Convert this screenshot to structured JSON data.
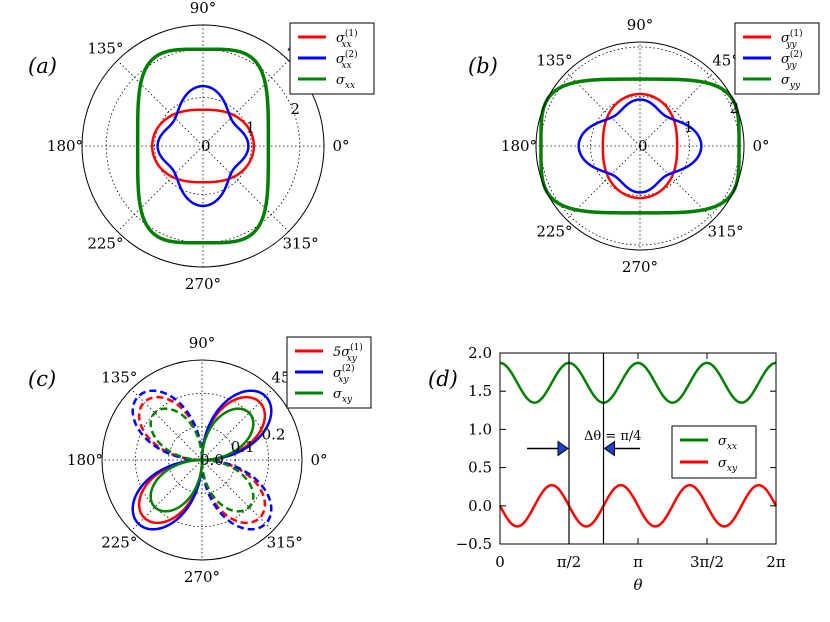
{
  "chart_data": [
    {
      "type": "polar-line",
      "panel_label": "(a)",
      "angle_tick_labels": [
        "0°",
        "45°",
        "90°",
        "135°",
        "180°",
        "225°",
        "270°",
        "315°"
      ],
      "radial_tick_labels": [
        "0",
        "1",
        "2"
      ],
      "rlim": [
        0,
        2.5
      ],
      "series": [
        {
          "name": "σ_xx^(1)",
          "color": "#ff0000",
          "dashed": false,
          "formula": "r = 0.9 + 0.15*cos(2θ)"
        },
        {
          "name": "σ_xx^(2)",
          "color": "#0000ff",
          "dashed": false,
          "formula": "r = 0.9 - 0.15*cos(2θ) + 0.25*cos(4θ) (approx.)"
        },
        {
          "name": "σ_xx",
          "color": "#008000",
          "dashed": false,
          "formula": "superellipse, r(0°) ≈ 1.35, r(90°) ≈ 2.0"
        }
      ],
      "legend": [
        {
          "label": "σ",
          "sub": "xx",
          "sup": "(1)",
          "color": "#ff0000"
        },
        {
          "label": "σ",
          "sub": "xx",
          "sup": "(2)",
          "color": "#0000ff"
        },
        {
          "label": "σ",
          "sub": "xx",
          "sup": "",
          "color": "#008000"
        }
      ],
      "legend_position": "top-right",
      "grid": true
    },
    {
      "type": "polar-line",
      "panel_label": "(b)",
      "angle_tick_labels": [
        "0°",
        "45°",
        "90°",
        "135°",
        "180°",
        "225°",
        "270°",
        "315°"
      ],
      "radial_tick_labels": [
        "0",
        "1",
        "2"
      ],
      "rlim": [
        0,
        2.1
      ],
      "series": [
        {
          "name": "σ_yy^(1)",
          "color": "#ff0000",
          "dashed": false,
          "formula": "r = 0.9 - 0.15*cos(2θ)"
        },
        {
          "name": "σ_yy^(2)",
          "color": "#0000ff",
          "dashed": false,
          "formula": "r = 0.9 + 0.15*cos(2θ) + 0.25*cos(4θ) (approx.)"
        },
        {
          "name": "σ_yy",
          "color": "#008000",
          "dashed": false,
          "formula": "superellipse, r(0°) ≈ 2.0, r(90°) ≈ 1.35"
        }
      ],
      "legend": [
        {
          "label": "σ",
          "sub": "yy",
          "sup": "(1)",
          "color": "#ff0000"
        },
        {
          "label": "σ",
          "sub": "yy",
          "sup": "(2)",
          "color": "#0000ff"
        },
        {
          "label": "σ",
          "sub": "yy",
          "sup": "",
          "color": "#008000"
        }
      ],
      "legend_position": "top-right",
      "grid": true
    },
    {
      "type": "polar-line",
      "panel_label": "(c)",
      "angle_tick_labels": [
        "0°",
        "45°",
        "90°",
        "135°",
        "180°",
        "225°",
        "270°",
        "315°"
      ],
      "radial_tick_labels": [
        "0.0",
        "0.1",
        "0.2"
      ],
      "rlim": [
        0,
        0.3
      ],
      "series": [
        {
          "name": "5σ_xy^(1)",
          "color": "#ff0000",
          "dashed": false,
          "formula": "r = 0.245*|sin(2θ)| (solid where positive)"
        },
        {
          "name": "σ_xy^(2)",
          "color": "#0000ff",
          "dashed": false,
          "formula": "r = 0.27*|sin(2θ)| (solid where positive)"
        },
        {
          "name": "σ_xy",
          "color": "#008000",
          "dashed": false,
          "formula": "r = 0.2*|sin(2θ)| (solid where positive)"
        }
      ],
      "legend": [
        {
          "label": "5σ",
          "sub": "xy",
          "sup": "(1)",
          "color": "#ff0000"
        },
        {
          "label": "σ",
          "sub": "xy",
          "sup": "(2)",
          "color": "#0000ff"
        },
        {
          "label": "σ",
          "sub": "xy",
          "sup": "",
          "color": "#008000"
        }
      ],
      "legend_position": "top-right",
      "grid": true,
      "note": "negative values drawn dashed"
    },
    {
      "type": "line",
      "panel_label": "(d)",
      "xlabel": "θ",
      "x_tick_labels": [
        "0",
        "π/2",
        "π",
        "3π/2",
        "2π"
      ],
      "y_tick_labels": [
        "−0.5",
        "0.0",
        "0.5",
        "1.0",
        "1.5",
        "2.0"
      ],
      "y_ticks": [
        -0.5,
        0.0,
        0.5,
        1.0,
        1.5,
        2.0
      ],
      "xlim_pi": [
        0,
        2
      ],
      "ylim": [
        -0.5,
        2.0
      ],
      "series": [
        {
          "name": "σ_xx",
          "color": "#008000",
          "formula": "y = 1.61 - 0.26*cos(4θ - π)",
          "x_pi": [
            0,
            0.25,
            0.5,
            0.75,
            1,
            1.25,
            1.5,
            1.75,
            2
          ],
          "y": [
            1.35,
            1.61,
            1.87,
            1.61,
            1.35,
            1.61,
            1.87,
            1.61,
            1.35
          ]
        },
        {
          "name": "σ_xy",
          "color": "#ff0000",
          "formula": "y = -0.27*sin(4θ)",
          "x_pi": [
            0,
            0.125,
            0.25,
            0.375,
            0.5,
            0.625,
            0.75,
            0.875,
            1,
            1.125,
            1.25,
            1.375,
            1.5,
            1.625,
            1.75,
            1.875,
            2
          ],
          "y": [
            0,
            -0.27,
            0,
            0.27,
            0,
            -0.27,
            0,
            0.27,
            0,
            -0.27,
            0,
            0.27,
            0,
            -0.27,
            0,
            0.27,
            0
          ]
        }
      ],
      "legend": [
        {
          "label": "σ",
          "sub": "xx",
          "color": "#008000"
        },
        {
          "label": "σ",
          "sub": "xy",
          "color": "#ff0000"
        }
      ],
      "vlines_pi": [
        0.5,
        0.75
      ],
      "annotation": "Δθ = π/4",
      "legend_position": "center-right"
    }
  ]
}
